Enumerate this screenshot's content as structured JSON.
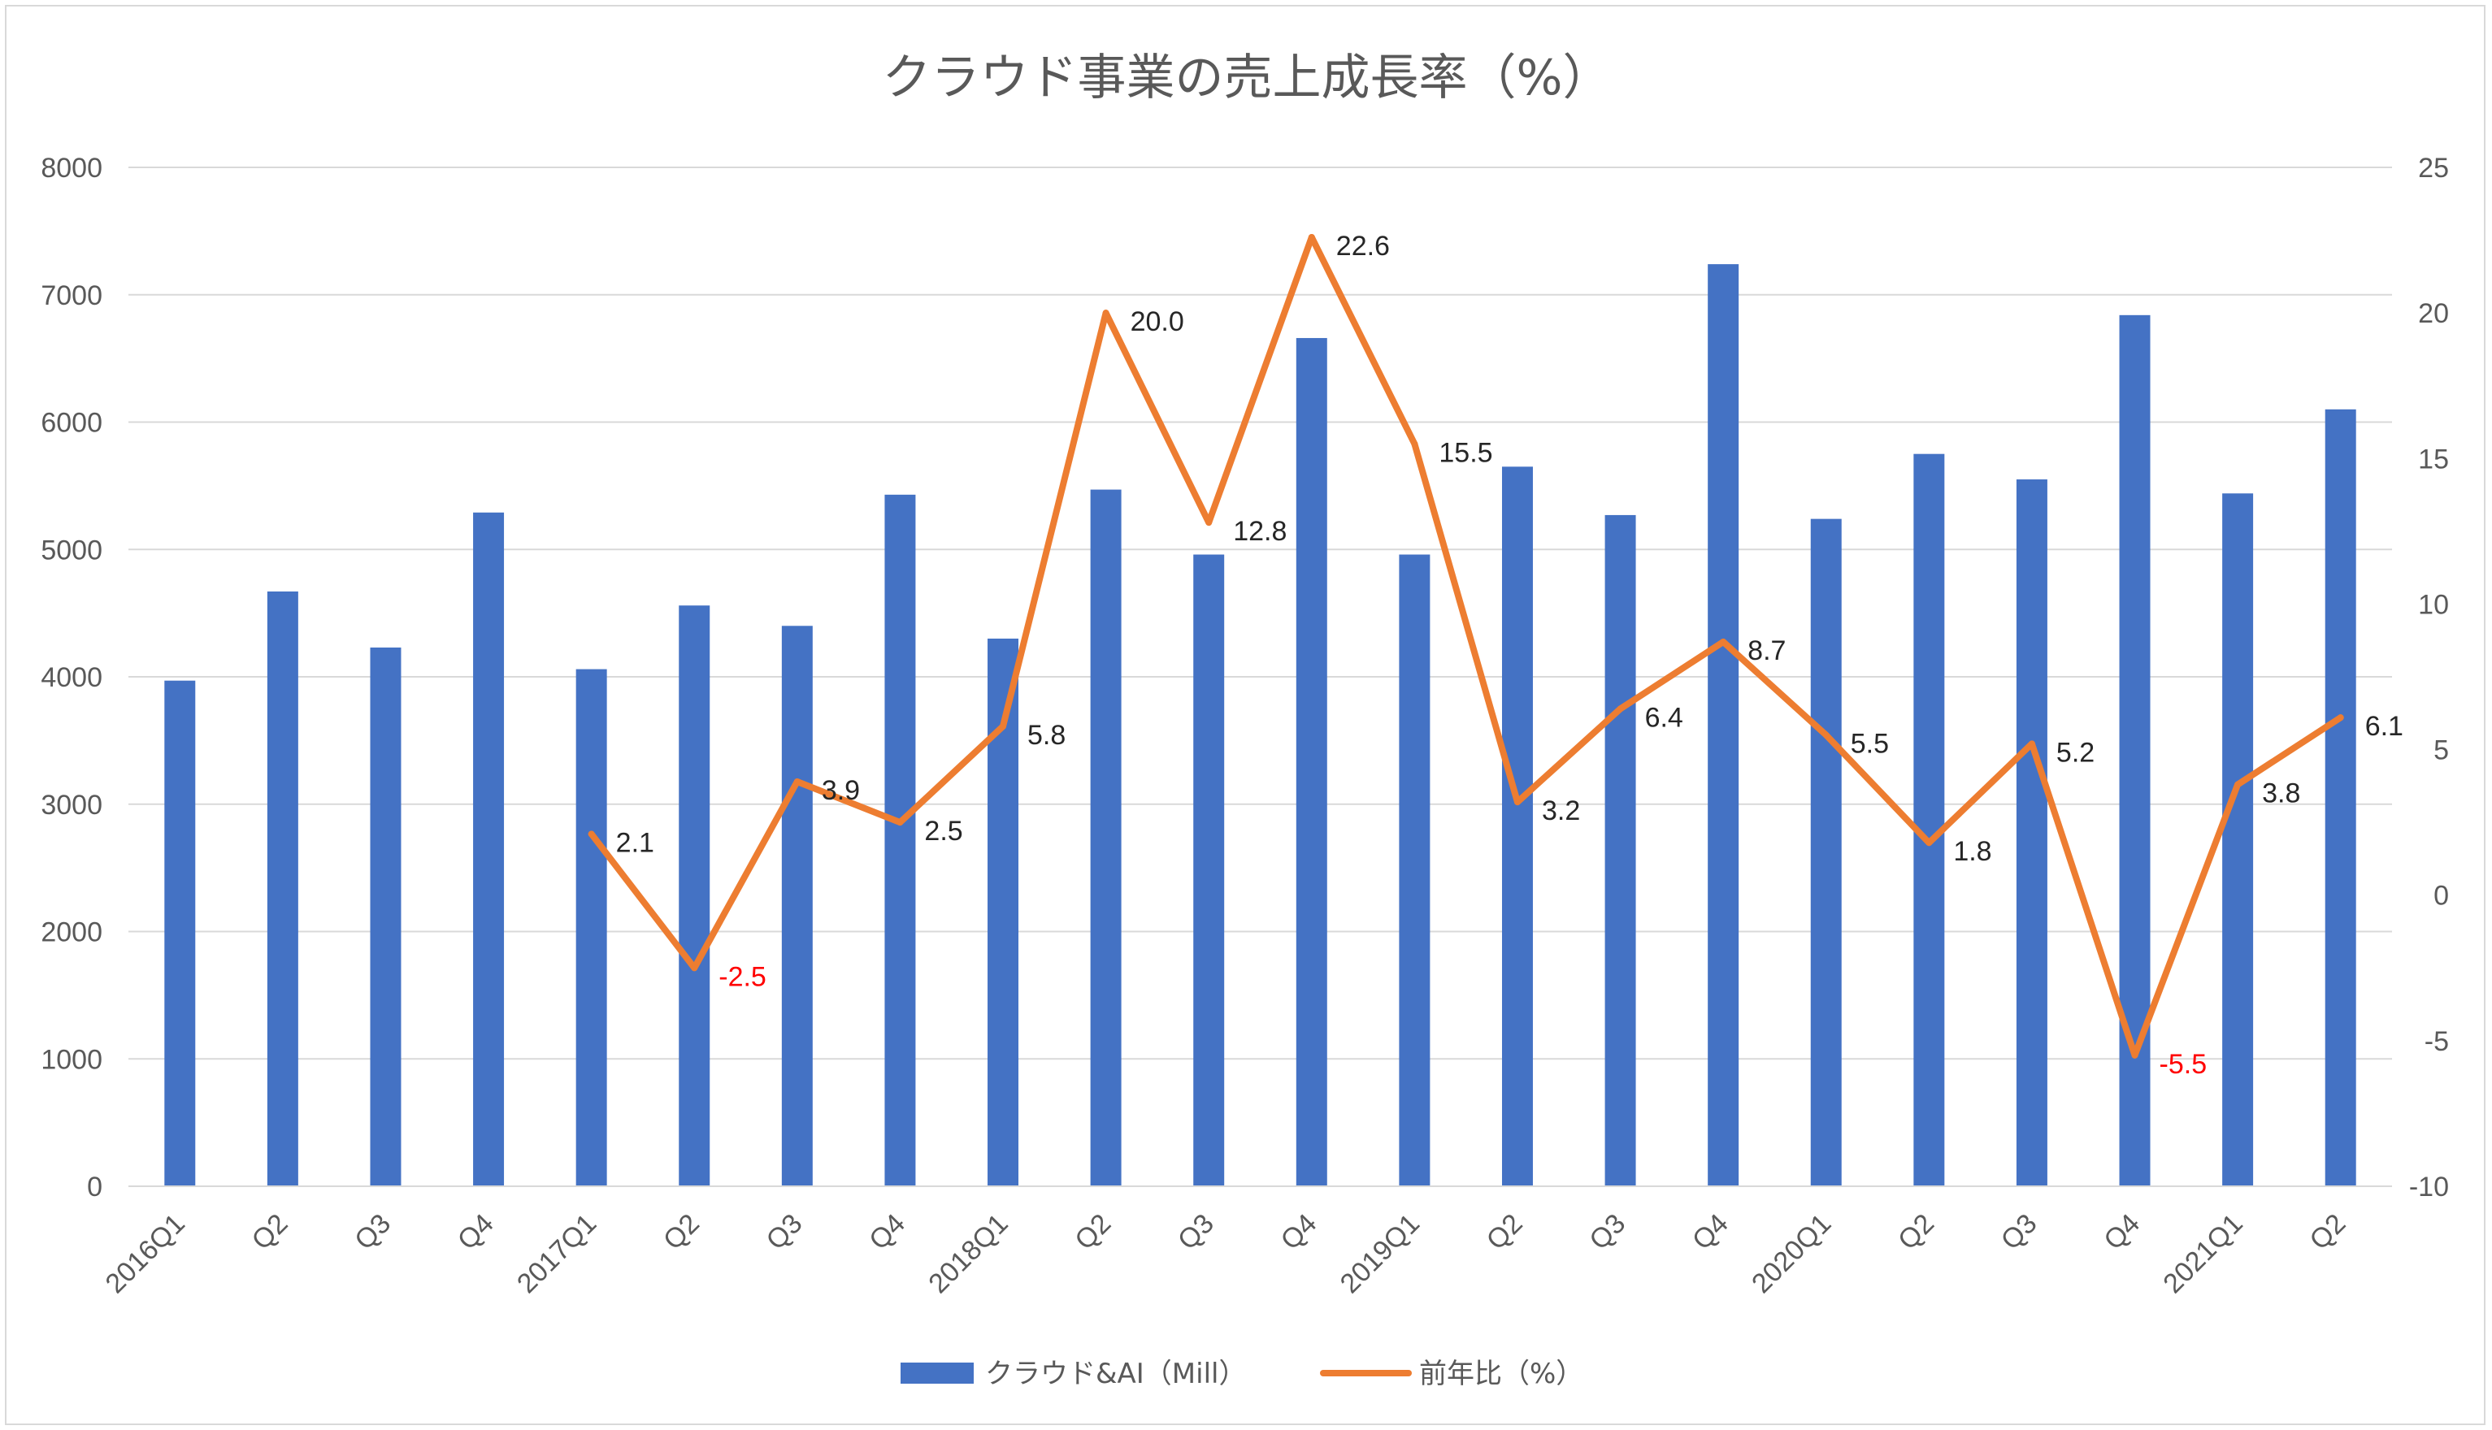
{
  "chart_data": {
    "type": "bar",
    "title": "クラウド事業の売上成長率（%）",
    "categories": [
      "2016Q1",
      "Q2",
      "Q3",
      "Q4",
      "2017Q1",
      "Q2",
      "Q3",
      "Q4",
      "2018Q1",
      "Q2",
      "Q3",
      "Q4",
      "2019Q1",
      "Q2",
      "Q3",
      "Q4",
      "2020Q1",
      "Q2",
      "Q3",
      "Q4",
      "2021Q1",
      "Q2"
    ],
    "series": [
      {
        "name": "クラウド&AI（Mill）",
        "type": "bar",
        "axis": "left",
        "color": "#4472c4",
        "values": [
          3970,
          4670,
          4230,
          5290,
          4060,
          4560,
          4400,
          5430,
          4300,
          5470,
          4960,
          6660,
          4960,
          5650,
          5270,
          7240,
          5240,
          5750,
          5550,
          6840,
          5440,
          6100
        ]
      },
      {
        "name": "前年比（%）",
        "type": "line",
        "axis": "right",
        "color": "#ed7d31",
        "values": [
          null,
          null,
          null,
          null,
          2.1,
          -2.5,
          3.9,
          2.5,
          5.8,
          20.0,
          12.8,
          22.6,
          15.5,
          3.2,
          6.4,
          8.7,
          5.5,
          1.8,
          5.2,
          -5.5,
          3.8,
          6.1
        ],
        "labels": [
          null,
          null,
          null,
          null,
          "2.1",
          "-2.5",
          "3.9",
          "2.5",
          "5.8",
          "20.0",
          "12.8",
          "22.6",
          "15.5",
          "3.2",
          "6.4",
          "8.7",
          "5.5",
          "1.8",
          "5.2",
          "-5.5",
          "3.8",
          "6.1"
        ]
      }
    ],
    "y_left": {
      "min": 0,
      "max": 8000,
      "ticks": [
        "0",
        "1000",
        "2000",
        "3000",
        "4000",
        "5000",
        "6000",
        "7000",
        "8000"
      ]
    },
    "y_right": {
      "min": -10,
      "max": 25,
      "ticks": [
        "-10",
        "-5",
        "0",
        "5",
        "10",
        "15",
        "20",
        "25"
      ]
    },
    "grid": true,
    "legend_position": "bottom",
    "negative_label_color": "#ff0000"
  }
}
